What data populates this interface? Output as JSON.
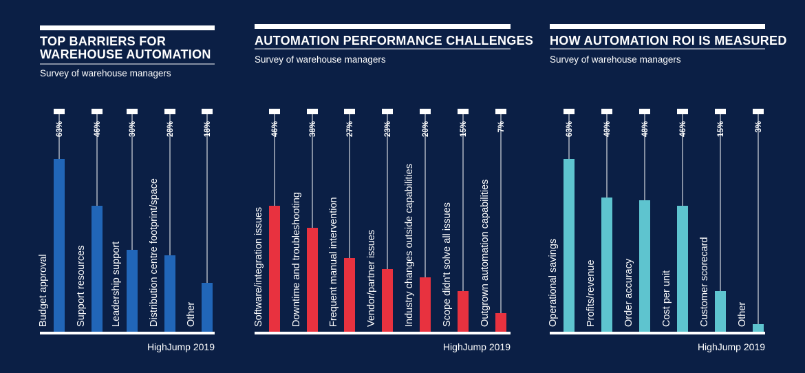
{
  "chart_data": [
    {
      "type": "bar",
      "title": "TOP BARRIERS FOR WAREHOUSE AUTOMATION",
      "subtitle": "Survey of warehouse managers",
      "source": "HighJump 2019",
      "color": "#2166b8",
      "ylim": [
        0,
        100
      ],
      "categories": [
        "Budget approval",
        "Support resources",
        "Leadership support",
        "Distribution centre footprint/space",
        "Other"
      ],
      "values": [
        63,
        46,
        30,
        28,
        18
      ],
      "value_labels": [
        "63%",
        "46%",
        "30%",
        "28%",
        "18%"
      ]
    },
    {
      "type": "bar",
      "title": "AUTOMATION PERFORMANCE CHALLENGES",
      "subtitle": "Survey of warehouse managers",
      "source": "HighJump 2019",
      "color": "#e8323f",
      "ylim": [
        0,
        100
      ],
      "categories": [
        "Software/integration issues",
        "Downtime and troubleshooting",
        "Frequent manual intervention",
        "Vendor/partner issues",
        "Industry changes outside capabilities",
        "Scope didn't solve all issues",
        "Outgrown automation capabilities"
      ],
      "values": [
        46,
        38,
        27,
        23,
        20,
        15,
        7
      ],
      "value_labels": [
        "46%",
        "38%",
        "27%",
        "23%",
        "20%",
        "15%",
        "7%"
      ]
    },
    {
      "type": "bar",
      "title": "HOW AUTOMATION ROI IS MEASURED",
      "subtitle": "Survey of warehouse managers",
      "source": "HighJump 2019",
      "color": "#5ec4cf",
      "ylim": [
        0,
        100
      ],
      "categories": [
        "Operational savings",
        "Profits/revenue",
        "Order accuracy",
        "Cost per unit",
        "Customer scorecard",
        "Other"
      ],
      "values": [
        63,
        49,
        48,
        46,
        15,
        3
      ],
      "value_labels": [
        "63%",
        "49%",
        "48%",
        "46%",
        "15%",
        "3%"
      ]
    }
  ]
}
